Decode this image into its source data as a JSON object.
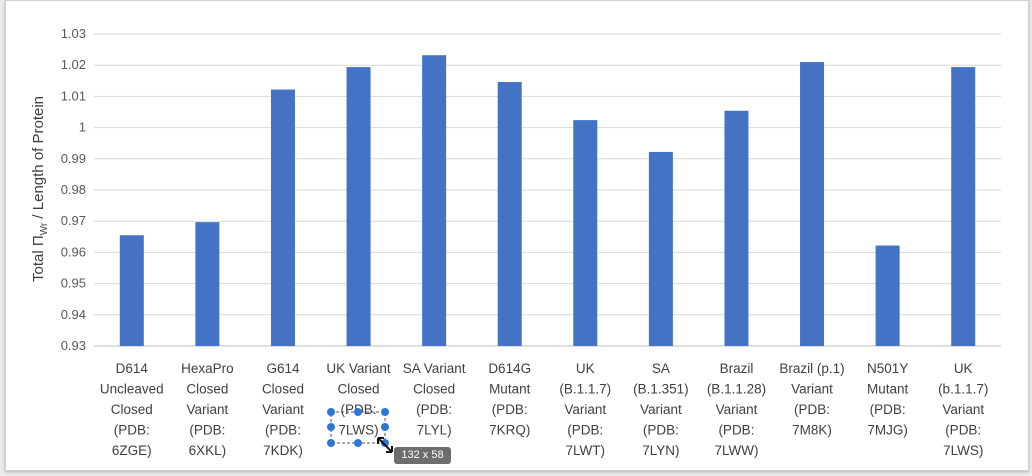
{
  "chart_data": {
    "type": "bar",
    "ylabel": "Total ΠWr / Length of Protein",
    "ylabel_main": "Total Π",
    "ylabel_sub": "Wr",
    "ylabel_rest": " / Length of Protein",
    "ylim": [
      0.93,
      1.03
    ],
    "yticks": [
      "0.93",
      "0.94",
      "0.95",
      "0.96",
      "0.97",
      "0.98",
      "0.99",
      "1",
      "1.01",
      "1.02",
      "1.03"
    ],
    "grid": true,
    "bar_color": "#4472c4",
    "categories": [
      [
        "D614",
        "Uncleaved",
        "Closed",
        "(PDB:",
        "6ZGE)"
      ],
      [
        "HexaPro",
        "Closed",
        "Variant",
        "(PDB:",
        "6XKL)"
      ],
      [
        "G614",
        "Closed",
        "Variant",
        "(PDB:",
        "7KDK)"
      ],
      [
        "UK Variant",
        "Closed",
        "(PDB:",
        "7LWS)"
      ],
      [
        "SA Variant",
        "Closed",
        "(PDB:",
        "7LYL)"
      ],
      [
        "D614G",
        "Mutant",
        "(PDB:",
        "7KRQ)"
      ],
      [
        "UK",
        "(B.1.1.7)",
        "Variant",
        "(PDB:",
        "7LWT)"
      ],
      [
        "SA",
        "(B.1.351)",
        "Variant",
        "(PDB:",
        "7LYN)"
      ],
      [
        "Brazil",
        "(B.1.1.28)",
        "Variant",
        "(PDB:",
        "7LWW)"
      ],
      [
        "Brazil (p.1)",
        "Variant",
        "(PDB:",
        "7M8K)"
      ],
      [
        "N501Y",
        "Mutant",
        "(PDB:",
        "7MJG)"
      ],
      [
        "UK",
        "(b.1.1.7)",
        "Variant",
        "(PDB:",
        "7LWS)"
      ]
    ],
    "values": [
      0.9655,
      0.9697,
      1.0122,
      1.0194,
      1.0232,
      1.0146,
      1.0024,
      0.9922,
      1.0054,
      1.021,
      0.9622,
      1.0194
    ]
  },
  "selection": {
    "size_badge": "132 x 58"
  }
}
